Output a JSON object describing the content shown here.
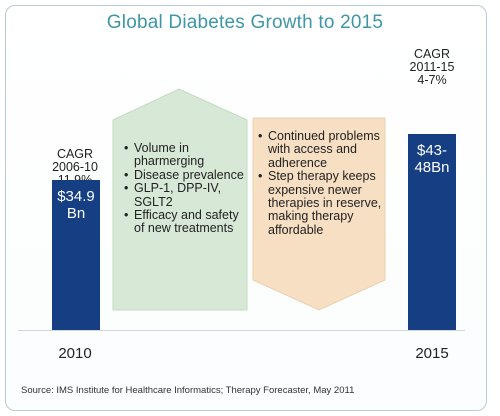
{
  "title": "Global Diabetes Growth to 2015",
  "chart_data": {
    "type": "bar",
    "title": "Global Diabetes Growth to 2015",
    "unit": "Bn",
    "categories": [
      "2010",
      "2015"
    ],
    "values": [
      34.9,
      45.5
    ],
    "value_labels": [
      "$34.9\nBn",
      "$43-\n48Bn"
    ],
    "value_ranges": [
      [
        34.9,
        34.9
      ],
      [
        43,
        48
      ]
    ],
    "cagr": [
      {
        "lines": [
          "CAGR",
          "2006-10",
          "11.9%"
        ]
      },
      {
        "lines": [
          "CAGR",
          "2011-15",
          "4-7%"
        ]
      }
    ],
    "growth_drivers": [
      "Volume in pharmerging",
      "Disease prevalence",
      "GLP-1, DPP-IV, SGLT2",
      "Efficacy and safety of new treatments"
    ],
    "growth_constraints": [
      "Continued problems with access and adherence",
      "Step therapy keeps expensive newer therapies in reserve, making therapy affordable"
    ],
    "colors": {
      "bar": "#163e82",
      "up_arrow": "#d7e9d6",
      "down_arrow": "#f7dfc4",
      "title": "#3f97a6"
    }
  },
  "source": "Source: IMS Institute for Healthcare Informatics; Therapy Forecaster, May 2011"
}
